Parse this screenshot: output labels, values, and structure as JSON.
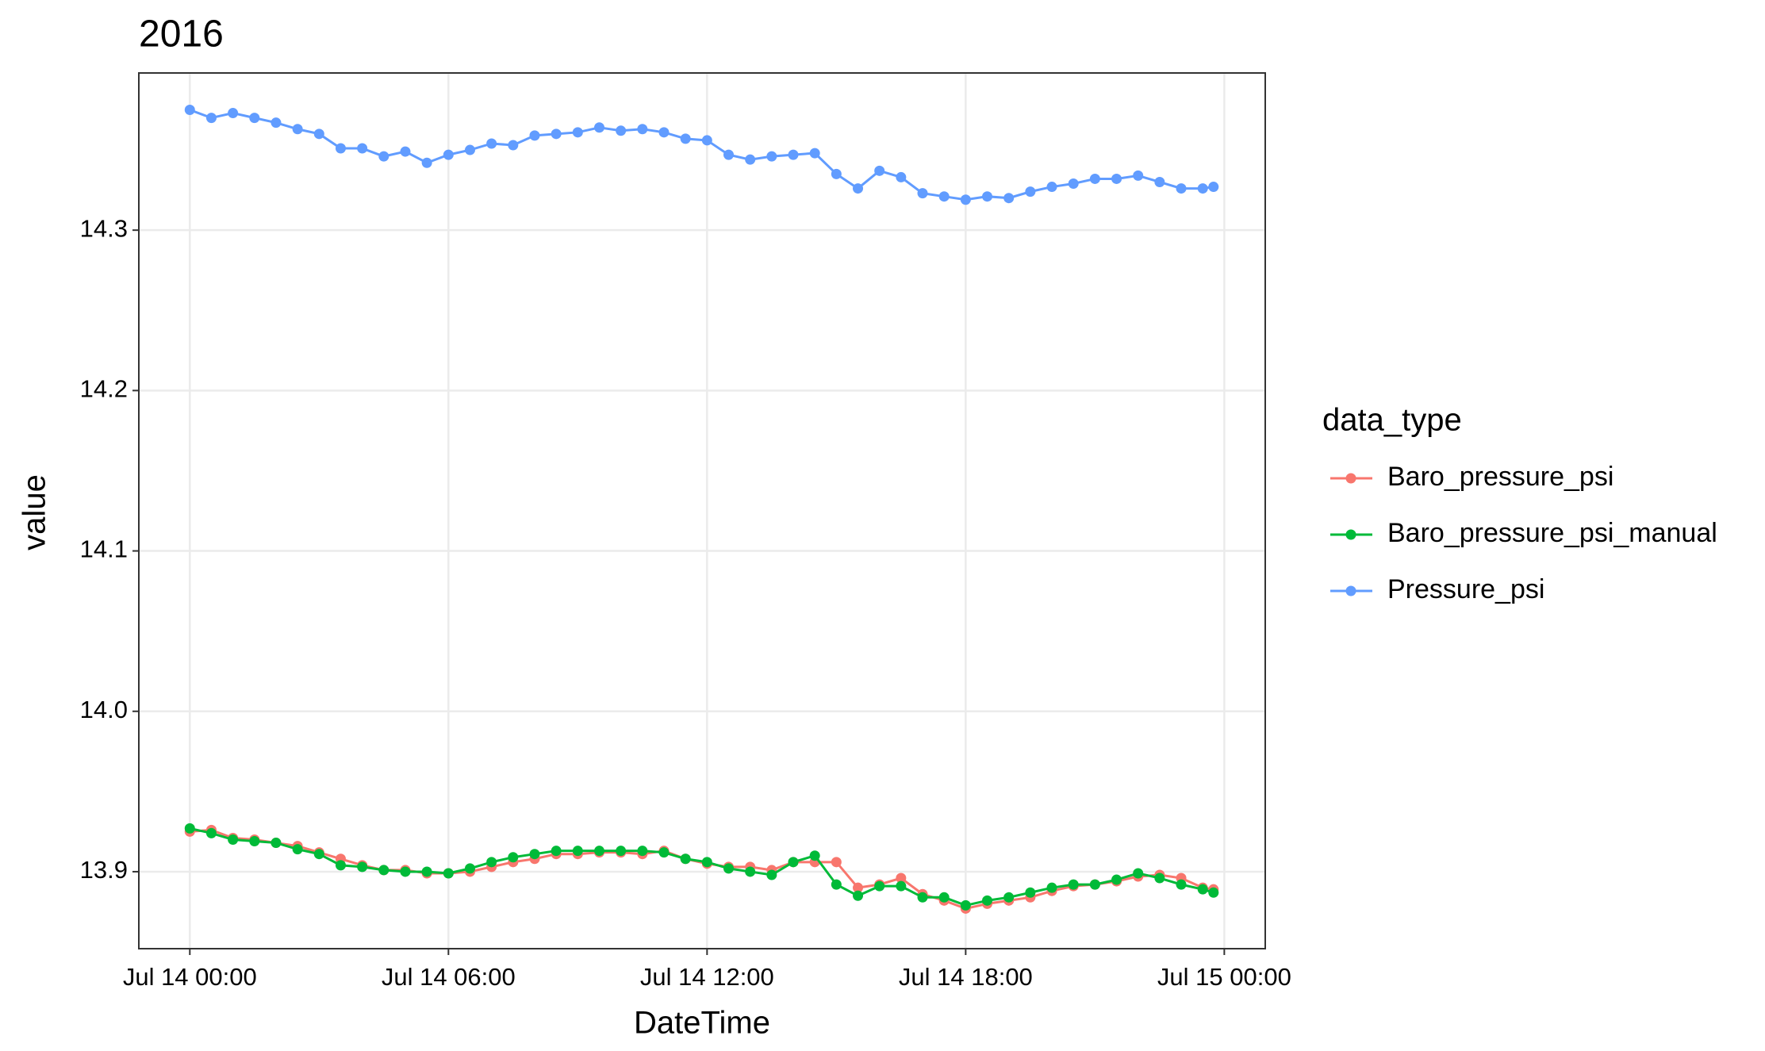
{
  "chart_data": {
    "type": "line",
    "title": "2016",
    "x_label": "DateTime",
    "y_label": "value",
    "legend_title": "data_type",
    "legend_position": "right",
    "grid": true,
    "x": [
      "Jul 14 00:00",
      "Jul 14 00:30",
      "Jul 14 01:00",
      "Jul 14 01:30",
      "Jul 14 02:00",
      "Jul 14 02:30",
      "Jul 14 03:00",
      "Jul 14 03:30",
      "Jul 14 04:00",
      "Jul 14 04:30",
      "Jul 14 05:00",
      "Jul 14 05:30",
      "Jul 14 06:00",
      "Jul 14 06:30",
      "Jul 14 07:00",
      "Jul 14 07:30",
      "Jul 14 08:00",
      "Jul 14 08:30",
      "Jul 14 09:00",
      "Jul 14 09:30",
      "Jul 14 10:00",
      "Jul 14 10:30",
      "Jul 14 11:00",
      "Jul 14 11:30",
      "Jul 14 12:00",
      "Jul 14 12:30",
      "Jul 14 13:00",
      "Jul 14 13:30",
      "Jul 14 14:00",
      "Jul 14 14:30",
      "Jul 14 15:00",
      "Jul 14 15:30",
      "Jul 14 16:00",
      "Jul 14 16:30",
      "Jul 14 17:00",
      "Jul 14 17:30",
      "Jul 14 18:00",
      "Jul 14 18:30",
      "Jul 14 19:00",
      "Jul 14 19:30",
      "Jul 14 20:00",
      "Jul 14 20:30",
      "Jul 14 21:00",
      "Jul 14 21:30",
      "Jul 14 22:00",
      "Jul 14 22:30",
      "Jul 14 23:00",
      "Jul 14 23:30",
      "Jul 14 23:45"
    ],
    "series": [
      {
        "name": "Baro_pressure_psi",
        "color": "#F8766D",
        "values": [
          13.925,
          13.926,
          13.921,
          13.92,
          13.918,
          13.916,
          13.912,
          13.908,
          13.904,
          13.901,
          13.901,
          13.899,
          13.899,
          13.9,
          13.903,
          13.906,
          13.908,
          13.911,
          13.911,
          13.912,
          13.912,
          13.911,
          13.913,
          13.908,
          13.905,
          13.903,
          13.903,
          13.901,
          13.906,
          13.906,
          13.906,
          13.89,
          13.892,
          13.896,
          13.886,
          13.882,
          13.877,
          13.88,
          13.882,
          13.884,
          13.888,
          13.891,
          13.892,
          13.894,
          13.897,
          13.898,
          13.896,
          13.89,
          13.889
        ]
      },
      {
        "name": "Baro_pressure_psi_manual",
        "color": "#00BA38",
        "values": [
          13.927,
          13.924,
          13.92,
          13.919,
          13.918,
          13.914,
          13.911,
          13.904,
          13.903,
          13.901,
          13.9,
          13.9,
          13.899,
          13.902,
          13.906,
          13.909,
          13.911,
          13.913,
          13.913,
          13.913,
          13.913,
          13.913,
          13.912,
          13.908,
          13.906,
          13.902,
          13.9,
          13.898,
          13.906,
          13.91,
          13.892,
          13.885,
          13.891,
          13.891,
          13.884,
          13.884,
          13.879,
          13.882,
          13.884,
          13.887,
          13.89,
          13.892,
          13.892,
          13.895,
          13.899,
          13.896,
          13.892,
          13.889,
          13.887
        ]
      },
      {
        "name": "Pressure_psi",
        "color": "#619CFF",
        "values": [
          14.375,
          14.37,
          14.373,
          14.37,
          14.367,
          14.363,
          14.36,
          14.351,
          14.351,
          14.346,
          14.349,
          14.342,
          14.347,
          14.35,
          14.354,
          14.353,
          14.359,
          14.36,
          14.361,
          14.364,
          14.362,
          14.363,
          14.361,
          14.357,
          14.356,
          14.347,
          14.344,
          14.346,
          14.347,
          14.348,
          14.335,
          14.326,
          14.337,
          14.333,
          14.323,
          14.321,
          14.319,
          14.321,
          14.32,
          14.324,
          14.327,
          14.329,
          14.332,
          14.332,
          14.334,
          14.33,
          14.326,
          14.326,
          14.327
        ]
      }
    ],
    "xlim": [
      "Jul 13 22:49",
      "Jul 15 00:57"
    ],
    "xticks": [
      "Jul 14 00:00",
      "Jul 14 06:00",
      "Jul 14 12:00",
      "Jul 14 18:00",
      "Jul 15 00:00"
    ],
    "ylim": [
      13.852,
      14.398
    ],
    "yticks": [
      13.9,
      {
        "value": 14,
        "label": "14.0"
      },
      14.1,
      14.2,
      14.3
    ]
  }
}
